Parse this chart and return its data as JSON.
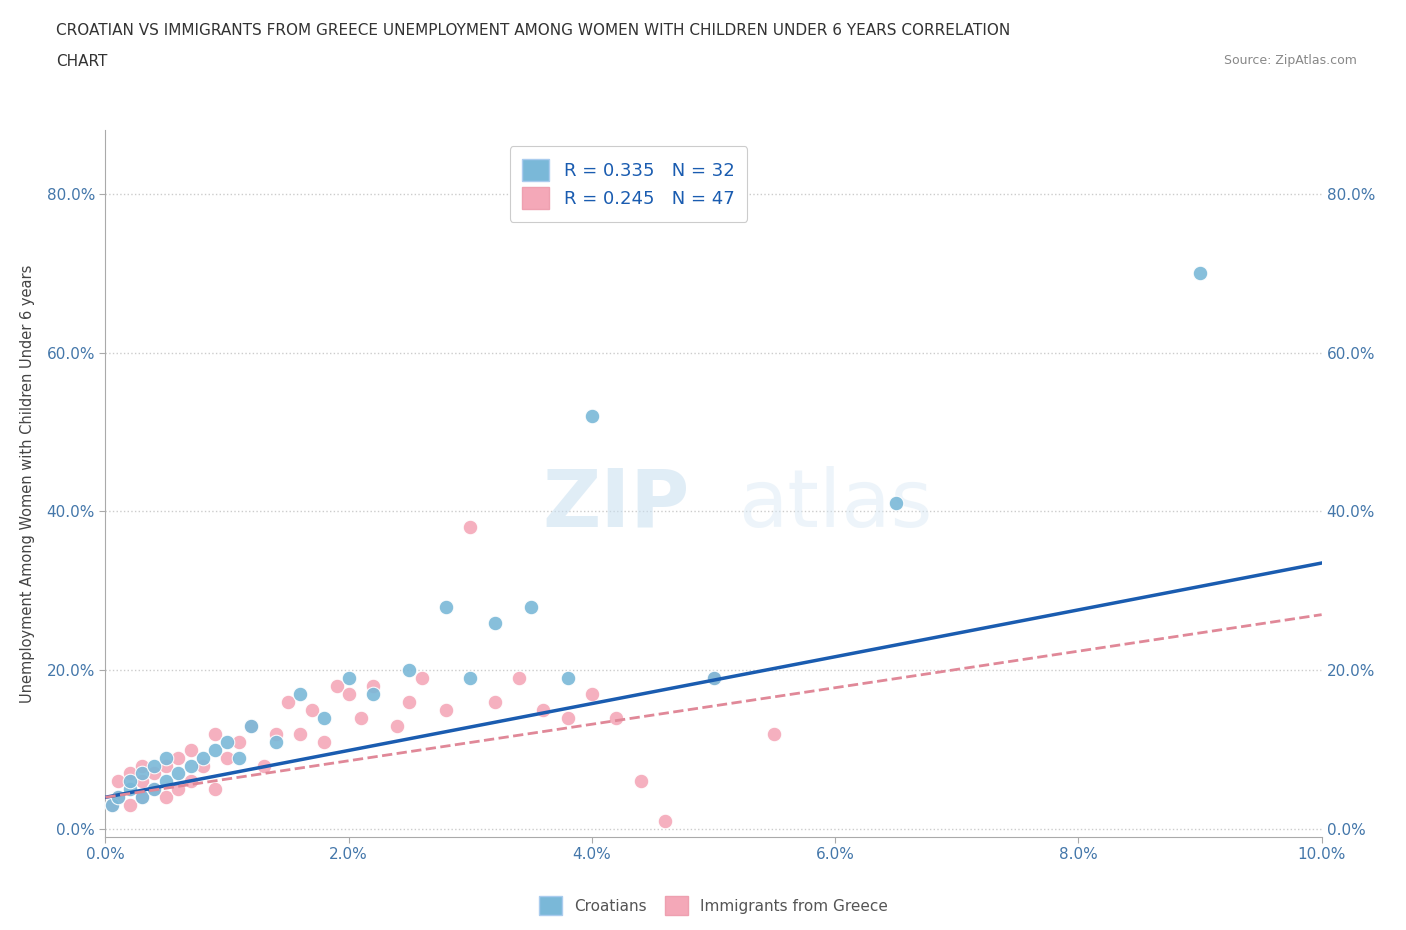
{
  "title_line1": "CROATIAN VS IMMIGRANTS FROM GREECE UNEMPLOYMENT AMONG WOMEN WITH CHILDREN UNDER 6 YEARS CORRELATION",
  "title_line2": "CHART",
  "source": "Source: ZipAtlas.com",
  "ylabel": "Unemployment Among Women with Children Under 6 years",
  "xlim": [
    0.0,
    0.1
  ],
  "ylim": [
    -0.01,
    0.88
  ],
  "x_ticks": [
    0.0,
    0.02,
    0.04,
    0.06,
    0.08,
    0.1
  ],
  "x_tick_labels": [
    "0.0%",
    "2.0%",
    "4.0%",
    "6.0%",
    "8.0%",
    "10.0%"
  ],
  "y_ticks": [
    0.0,
    0.2,
    0.4,
    0.6,
    0.8
  ],
  "y_tick_labels": [
    "0.0%",
    "20.0%",
    "40.0%",
    "60.0%",
    "80.0%"
  ],
  "r_croatian": 0.335,
  "n_croatian": 32,
  "r_greece": 0.245,
  "n_greece": 47,
  "color_croatian": "#7ab8d8",
  "color_greece": "#f4a8b8",
  "color_line_croatian": "#1a5cb0",
  "color_line_greece": "#e08898",
  "legend_croatian": "Croatians",
  "legend_greece": "Immigrants from Greece",
  "croatian_x": [
    0.0005,
    0.001,
    0.002,
    0.002,
    0.003,
    0.003,
    0.004,
    0.004,
    0.005,
    0.005,
    0.006,
    0.007,
    0.008,
    0.009,
    0.01,
    0.011,
    0.012,
    0.014,
    0.016,
    0.018,
    0.02,
    0.022,
    0.025,
    0.028,
    0.03,
    0.032,
    0.035,
    0.038,
    0.04,
    0.05,
    0.065,
    0.09
  ],
  "croatian_y": [
    0.03,
    0.04,
    0.05,
    0.06,
    0.04,
    0.07,
    0.05,
    0.08,
    0.06,
    0.09,
    0.07,
    0.08,
    0.09,
    0.1,
    0.11,
    0.09,
    0.13,
    0.11,
    0.17,
    0.14,
    0.19,
    0.17,
    0.2,
    0.28,
    0.19,
    0.26,
    0.28,
    0.19,
    0.52,
    0.19,
    0.41,
    0.7
  ],
  "greece_x": [
    0.0005,
    0.001,
    0.001,
    0.002,
    0.002,
    0.003,
    0.003,
    0.003,
    0.004,
    0.004,
    0.005,
    0.005,
    0.006,
    0.006,
    0.007,
    0.007,
    0.008,
    0.009,
    0.009,
    0.01,
    0.011,
    0.012,
    0.013,
    0.014,
    0.015,
    0.016,
    0.017,
    0.018,
    0.019,
    0.02,
    0.021,
    0.022,
    0.024,
    0.025,
    0.026,
    0.028,
    0.03,
    0.032,
    0.034,
    0.036,
    0.038,
    0.04,
    0.042,
    0.044,
    0.046,
    0.05,
    0.055
  ],
  "greece_y": [
    0.03,
    0.04,
    0.06,
    0.03,
    0.07,
    0.04,
    0.06,
    0.08,
    0.05,
    0.07,
    0.04,
    0.08,
    0.05,
    0.09,
    0.06,
    0.1,
    0.08,
    0.05,
    0.12,
    0.09,
    0.11,
    0.13,
    0.08,
    0.12,
    0.16,
    0.12,
    0.15,
    0.11,
    0.18,
    0.17,
    0.14,
    0.18,
    0.13,
    0.16,
    0.19,
    0.15,
    0.38,
    0.16,
    0.19,
    0.15,
    0.14,
    0.17,
    0.14,
    0.06,
    0.01,
    0.19,
    0.12
  ],
  "line_croatian_x0": 0.0,
  "line_croatian_y0": 0.04,
  "line_croatian_x1": 0.1,
  "line_croatian_y1": 0.335,
  "line_greece_x0": 0.0,
  "line_greece_y0": 0.04,
  "line_greece_x1": 0.1,
  "line_greece_y1": 0.27
}
